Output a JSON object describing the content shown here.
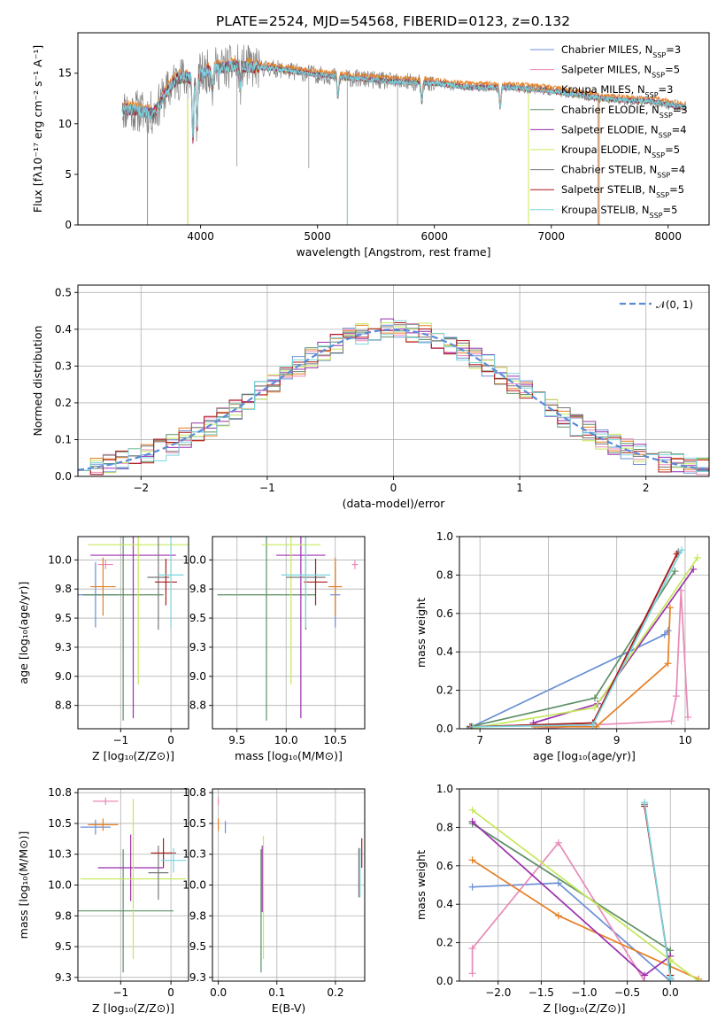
{
  "figure_title": "PLATE=2524, MJD=54568, FIBERID=0123, z=0.132",
  "model_colors": [
    "#6a8fd6",
    "#e88ab8",
    "#e67e22",
    "#5e8f66",
    "#9b2fae",
    "#c5e85a",
    "#777777",
    "#b01818",
    "#7ad4dd"
  ],
  "chart_data": [
    {
      "id": "spectrum",
      "type": "line",
      "title": "PLATE=2524, MJD=54568, FIBERID=0123, z=0.132",
      "xlabel": "wavelength [Angstrom, rest frame]",
      "ylabel": "Flux [fλ10⁻¹⁷ erg cm⁻² s⁻¹ A⁻¹]",
      "xlim": [
        2950,
        8350
      ],
      "ylim": [
        0,
        19
      ],
      "xticks": [
        4000,
        5000,
        6000,
        7000,
        8000
      ],
      "yticks": [
        0,
        5,
        10,
        15
      ],
      "grid": false,
      "legend_position": "top-right",
      "series": [
        {
          "name": "Chabrier MILES, N_SSP=3",
          "legend": "Chabrier MILES, N",
          "sub": "SSP",
          "suffix": "=3"
        },
        {
          "name": "Salpeter MILES, N_SSP=5",
          "legend": "Salpeter MILES, N",
          "sub": "SSP",
          "suffix": "=5"
        },
        {
          "name": "Kroupa MILES, N_SSP=3",
          "legend": "Kroupa MILES, N",
          "sub": "SSP",
          "suffix": "=3"
        },
        {
          "name": "Chabrier ELODIE, N_SSP=3",
          "legend": "Chabrier ELODIE, N",
          "sub": "SSP",
          "suffix": "=3"
        },
        {
          "name": "Salpeter ELODIE, N_SSP=4",
          "legend": "Salpeter ELODIE, N",
          "sub": "SSP",
          "suffix": "=4"
        },
        {
          "name": "Kroupa ELODIE, N_SSP=5",
          "legend": "Kroupa ELODIE, N",
          "sub": "SSP",
          "suffix": "=5"
        },
        {
          "name": "Chabrier STELIB, N_SSP=4",
          "legend": "Chabrier STELIB, N",
          "sub": "SSP",
          "suffix": "=4"
        },
        {
          "name": "Salpeter STELIB, N_SSP=5",
          "legend": "Salpeter STELIB, N",
          "sub": "SSP",
          "suffix": "=5"
        },
        {
          "name": "Kroupa STELIB, N_SSP=5",
          "legend": "Kroupa STELIB, N",
          "sub": "SSP",
          "suffix": "=5"
        }
      ],
      "continuum_points": [
        [
          3330,
          11.5
        ],
        [
          3450,
          11.3
        ],
        [
          3600,
          11.0
        ],
        [
          3700,
          13.0
        ],
        [
          3800,
          14.5
        ],
        [
          3950,
          14.6
        ],
        [
          4100,
          15.4
        ],
        [
          4300,
          15.7
        ],
        [
          4600,
          15.5
        ],
        [
          4900,
          15.0
        ],
        [
          5200,
          14.6
        ],
        [
          5600,
          14.2
        ],
        [
          6000,
          14.0
        ],
        [
          6300,
          13.6
        ],
        [
          6600,
          13.6
        ],
        [
          6900,
          13.4
        ],
        [
          7200,
          12.9
        ],
        [
          7500,
          12.4
        ],
        [
          7850,
          12.2
        ],
        [
          8150,
          11.6
        ]
      ],
      "absorption_features": [
        [
          3934,
          6
        ],
        [
          3969,
          5
        ],
        [
          4102,
          2
        ],
        [
          4340,
          2
        ],
        [
          5175,
          2
        ],
        [
          5892,
          2
        ],
        [
          6563,
          2
        ]
      ],
      "deep_spikes": [
        [
          3545,
          0.1
        ],
        [
          3890,
          0
        ],
        [
          4310,
          5.8
        ],
        [
          4925,
          5.6
        ],
        [
          5255,
          0
        ],
        [
          5685,
          0
        ],
        [
          6805,
          0.3
        ],
        [
          7400,
          0
        ]
      ]
    },
    {
      "id": "residuals",
      "type": "histogram",
      "xlabel": "(data-model)/error",
      "ylabel": "Normed distribution",
      "xlim": [
        -2.5,
        2.5
      ],
      "ylim": [
        0,
        0.52
      ],
      "xticks": [
        -2,
        -1,
        0,
        1,
        2
      ],
      "yticks": [
        0.0,
        0.1,
        0.2,
        0.3,
        0.4,
        0.5
      ],
      "grid": true,
      "legend_position": "top-right",
      "reference_curve": {
        "name": "N(0,1)",
        "label": "𝒩(0, 1)",
        "mean": 0,
        "sigma": 1
      },
      "bins": [
        -2.5,
        -2.4,
        -2.3,
        -2.2,
        -2.1,
        -2.0,
        -1.9,
        -1.8,
        -1.7,
        -1.6,
        -1.5,
        -1.4,
        -1.3,
        -1.2,
        -1.1,
        -1.0,
        -0.9,
        -0.8,
        -0.7,
        -0.6,
        -0.5,
        -0.4,
        -0.3,
        -0.2,
        -0.1,
        0.0,
        0.1,
        0.2,
        0.3,
        0.4,
        0.5,
        0.6,
        0.7,
        0.8,
        0.9,
        1.0,
        1.1,
        1.2,
        1.3,
        1.4,
        1.5,
        1.6,
        1.7,
        1.8,
        1.9,
        2.0,
        2.1,
        2.2,
        2.3,
        2.4,
        2.5
      ],
      "density_scatter": 0.03
    },
    {
      "id": "age-vs-Z",
      "type": "errorbar",
      "xlabel": "Z [log₁₀(Z/Z⊙)]",
      "ylabel": "age  [log₁₀(age/yr)]",
      "xlim": [
        -1.85,
        0.35
      ],
      "ylim": [
        8.55,
        10.2
      ],
      "xticks": [
        -1,
        0
      ],
      "yticks": [
        8.75,
        9.0,
        9.25,
        9.5,
        9.75,
        10.0
      ],
      "grid": true,
      "points": [
        {
          "series": 0,
          "x": -1.5,
          "y": 9.7,
          "xerr": 0.45,
          "yerr": 0.28
        },
        {
          "series": 1,
          "x": -1.3,
          "y": 9.96,
          "xerr": 0.15,
          "yerr": 0.04
        },
        {
          "series": 2,
          "x": -1.35,
          "y": 9.77,
          "xerr": 0.25,
          "yerr": 0.25
        },
        {
          "series": 3,
          "x": -0.95,
          "y": 9.7,
          "xerr": 0.8,
          "yerr": 1.08
        },
        {
          "series": 4,
          "x": -0.75,
          "y": 10.04,
          "xerr": 0.85,
          "yerr": 1.4
        },
        {
          "series": 5,
          "x": -0.65,
          "y": 10.13,
          "xerr": 1.0,
          "yerr": 1.2
        },
        {
          "series": 6,
          "x": -0.25,
          "y": 9.85,
          "xerr": 0.22,
          "yerr": 0.45
        },
        {
          "series": 7,
          "x": -0.1,
          "y": 9.81,
          "xerr": 0.22,
          "yerr": 0.2
        },
        {
          "series": 8,
          "x": 0.0,
          "y": 9.87,
          "xerr": 0.25,
          "yerr": 0.45
        }
      ]
    },
    {
      "id": "age-vs-mass",
      "type": "errorbar",
      "xlabel": "mass [log₁₀(M/M⊙)]",
      "ylabel": "",
      "xlim": [
        9.25,
        10.8
      ],
      "ylim": [
        8.55,
        10.2
      ],
      "xticks": [
        9.5,
        10.0,
        10.5
      ],
      "yticks": [
        8.75,
        9.0,
        9.25,
        9.5,
        9.75,
        10.0
      ],
      "grid": true,
      "points": [
        {
          "series": 0,
          "x": 10.5,
          "y": 9.7,
          "xerr": 0.05,
          "yerr": 0.28
        },
        {
          "series": 1,
          "x": 10.7,
          "y": 9.96,
          "xerr": 0.03,
          "yerr": 0.04
        },
        {
          "series": 2,
          "x": 10.5,
          "y": 9.77,
          "xerr": 0.07,
          "yerr": 0.25
        },
        {
          "series": 3,
          "x": 9.8,
          "y": 9.7,
          "xerr": 0.5,
          "yerr": 1.08
        },
        {
          "series": 4,
          "x": 10.15,
          "y": 10.04,
          "xerr": 0.25,
          "yerr": 1.4
        },
        {
          "series": 5,
          "x": 10.05,
          "y": 10.13,
          "xerr": 0.3,
          "yerr": 1.2
        },
        {
          "series": 6,
          "x": 10.2,
          "y": 9.85,
          "xerr": 0.2,
          "yerr": 0.45
        },
        {
          "series": 7,
          "x": 10.3,
          "y": 9.81,
          "xerr": 0.12,
          "yerr": 0.2
        },
        {
          "series": 8,
          "x": 10.2,
          "y": 9.87,
          "xerr": 0.25,
          "yerr": 0.45
        }
      ]
    },
    {
      "id": "weight-vs-age",
      "type": "line",
      "xlabel": "age  [log₁₀(age/yr)]",
      "ylabel": "mass weight",
      "xlim": [
        6.7,
        10.35
      ],
      "ylim": [
        0,
        1
      ],
      "xticks": [
        7,
        8,
        9,
        10
      ],
      "yticks": [
        0.0,
        0.2,
        0.4,
        0.6,
        0.8,
        1.0
      ],
      "grid": true,
      "series": [
        {
          "series": 0,
          "x": [
            6.82,
            9.7,
            9.75
          ],
          "y": [
            0.0,
            0.49,
            0.51
          ]
        },
        {
          "series": 1,
          "x": [
            7.85,
            8.65,
            9.8,
            9.87,
            9.94,
            10.04
          ],
          "y": [
            0.0,
            0.02,
            0.04,
            0.17,
            0.72,
            0.06
          ]
        },
        {
          "series": 2,
          "x": [
            7.8,
            8.7,
            9.75,
            9.78
          ],
          "y": [
            0.01,
            0.01,
            0.34,
            0.63
          ]
        },
        {
          "series": 3,
          "x": [
            6.85,
            8.68,
            9.85
          ],
          "y": [
            0.01,
            0.16,
            0.82
          ]
        },
        {
          "series": 4,
          "x": [
            7.78,
            8.72,
            10.12
          ],
          "y": [
            0.03,
            0.13,
            0.83
          ]
        },
        {
          "series": 5,
          "x": [
            6.85,
            8.68,
            10.18
          ],
          "y": [
            0.0,
            0.11,
            0.89
          ]
        },
        {
          "series": 6,
          "x": [
            6.88,
            8.65,
            9.9
          ],
          "y": [
            0.01,
            0.03,
            0.92
          ]
        },
        {
          "series": 7,
          "x": [
            6.87,
            8.65,
            9.88
          ],
          "y": [
            0.01,
            0.03,
            0.91
          ]
        },
        {
          "series": 8,
          "x": [
            6.9,
            8.65,
            9.95
          ],
          "y": [
            0.01,
            0.02,
            0.93
          ]
        }
      ]
    },
    {
      "id": "mass-vs-Z",
      "type": "errorbar",
      "xlabel": "Z [log₁₀(Z/Z⊙)]",
      "ylabel": "mass [log₁₀(M/M⊙)]",
      "xlim": [
        -1.85,
        0.35
      ],
      "ylim": [
        9.22,
        10.78
      ],
      "xticks": [
        -1,
        0
      ],
      "yticks": [
        9.25,
        9.5,
        9.75,
        10.0,
        10.25,
        10.5,
        10.75
      ],
      "grid": true,
      "points": [
        {
          "series": 0,
          "x": -1.5,
          "y": 10.47,
          "xerr": 0.3,
          "yerr": 0.06
        },
        {
          "series": 1,
          "x": -1.3,
          "y": 10.68,
          "xerr": 0.25,
          "yerr": 0.03
        },
        {
          "series": 2,
          "x": -1.35,
          "y": 10.49,
          "xerr": 0.3,
          "yerr": 0.05
        },
        {
          "series": 3,
          "x": -0.95,
          "y": 9.79,
          "xerr": 1.0,
          "yerr": 0.5
        },
        {
          "series": 4,
          "x": -0.8,
          "y": 10.14,
          "xerr": 0.65,
          "yerr": 0.27
        },
        {
          "series": 5,
          "x": -0.75,
          "y": 10.05,
          "xerr": 1.05,
          "yerr": 0.65
        },
        {
          "series": 6,
          "x": -0.25,
          "y": 10.1,
          "xerr": 0.2,
          "yerr": 0.22
        },
        {
          "series": 7,
          "x": -0.15,
          "y": 10.26,
          "xerr": 0.25,
          "yerr": 0.12
        },
        {
          "series": 8,
          "x": 0.05,
          "y": 10.2,
          "xerr": 0.25,
          "yerr": 0.1
        }
      ]
    },
    {
      "id": "mass-vs-EBV",
      "type": "errorbar",
      "xlabel": "E(B-V)",
      "ylabel": "",
      "xlim": [
        -0.01,
        0.25
      ],
      "ylim": [
        9.22,
        10.78
      ],
      "xticks": [
        0.0,
        0.1,
        0.2
      ],
      "yticks": [
        9.25,
        9.5,
        9.75,
        10.0,
        10.25,
        10.5,
        10.75
      ],
      "grid": true,
      "points": [
        {
          "series": 0,
          "x": 0.012,
          "y": 10.47,
          "xerr": 0,
          "yerr": 0.05
        },
        {
          "series": 1,
          "x": 0.0,
          "y": 10.68,
          "xerr": 0,
          "yerr": 0.03
        },
        {
          "series": 2,
          "x": 0.0,
          "y": 10.49,
          "xerr": 0,
          "yerr": 0.05
        },
        {
          "series": 3,
          "x": 0.073,
          "y": 9.79,
          "xerr": 0,
          "yerr": 0.5
        },
        {
          "series": 4,
          "x": 0.075,
          "y": 10.05,
          "xerr": 0,
          "yerr": 0.27
        },
        {
          "series": 5,
          "x": 0.077,
          "y": 9.9,
          "xerr": 0,
          "yerr": 0.5
        },
        {
          "series": 6,
          "x": 0.24,
          "y": 10.1,
          "xerr": 0,
          "yerr": 0.2
        },
        {
          "series": 7,
          "x": 0.245,
          "y": 10.26,
          "xerr": 0,
          "yerr": 0.12
        },
        {
          "series": 8,
          "x": 0.242,
          "y": 10.1,
          "xerr": 0,
          "yerr": 0.2
        }
      ]
    },
    {
      "id": "weight-vs-Z",
      "type": "line",
      "xlabel": "Z [log₁₀(Z/Z⊙)]",
      "ylabel": "mass weight",
      "xlim": [
        -2.45,
        0.45
      ],
      "ylim": [
        0,
        1
      ],
      "xticks": [
        -2.0,
        -1.5,
        -1.0,
        -0.5,
        0.0
      ],
      "yticks": [
        0.0,
        0.2,
        0.4,
        0.6,
        0.8,
        1.0
      ],
      "grid": true,
      "series": [
        {
          "series": 0,
          "x": [
            -2.3,
            -1.3,
            0.0
          ],
          "y": [
            0.49,
            0.51,
            0.0
          ]
        },
        {
          "series": 1,
          "x": [
            -2.3,
            -2.3,
            -1.3,
            -0.3
          ],
          "y": [
            0.04,
            0.17,
            0.72,
            0.0
          ]
        },
        {
          "series": 2,
          "x": [
            -2.3,
            -1.3,
            0.33
          ],
          "y": [
            0.63,
            0.34,
            0.01
          ]
        },
        {
          "series": 3,
          "x": [
            -2.3,
            0.0,
            0.0
          ],
          "y": [
            0.82,
            0.16,
            0.01
          ]
        },
        {
          "series": 4,
          "x": [
            -2.3,
            -0.3,
            0.0
          ],
          "y": [
            0.83,
            0.03,
            0.13
          ]
        },
        {
          "series": 5,
          "x": [
            -2.3,
            0.0,
            0.33
          ],
          "y": [
            0.89,
            0.11,
            0.0
          ]
        },
        {
          "series": 6,
          "x": [
            -0.3,
            0.0,
            0.0
          ],
          "y": [
            0.92,
            0.03,
            0.01
          ]
        },
        {
          "series": 7,
          "x": [
            -0.3,
            0.0,
            0.0
          ],
          "y": [
            0.91,
            0.03,
            0.01
          ]
        },
        {
          "series": 8,
          "x": [
            -0.3,
            0.0,
            0.0
          ],
          "y": [
            0.93,
            0.02,
            0.01
          ]
        }
      ]
    }
  ]
}
